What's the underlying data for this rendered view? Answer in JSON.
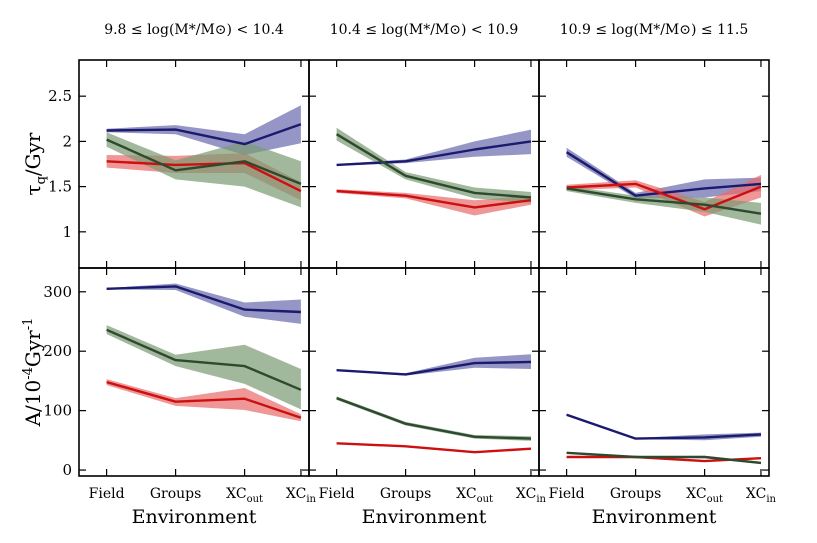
{
  "chart_data": {
    "type": "line",
    "xlabel": "Environment",
    "categories": [
      "Field",
      "Groups",
      "XC_out",
      "XC_in"
    ],
    "x_tick_labels": [
      {
        "main": "Field",
        "sub": ""
      },
      {
        "main": "Groups",
        "sub": ""
      },
      {
        "main": "XC",
        "sub": "out"
      },
      {
        "main": "XC",
        "sub": "in"
      }
    ],
    "columns": [
      {
        "title": "9.8 ≤ log(M*/M⊙) < 10.4"
      },
      {
        "title": "10.4 ≤ log(M*/M⊙) < 10.9"
      },
      {
        "title": "10.9 ≤ log(M*/M⊙) ≤ 11.5"
      }
    ],
    "rows": [
      {
        "ylabel": "τq/Gyr",
        "ylim": [
          0.6,
          2.9
        ],
        "yticks": [
          "1",
          "1.5",
          "2",
          "2.5"
        ]
      },
      {
        "ylabel": "A/10^-4 Gyr^-1",
        "ylim": [
          -10,
          340
        ],
        "yticks": [
          "0",
          "100",
          "200",
          "300"
        ]
      }
    ],
    "series_styles": [
      {
        "name": "blue",
        "line": "#1a1a6e",
        "band": "#6a6aae"
      },
      {
        "name": "red",
        "line": "#cc1010",
        "band": "#e86b6b"
      },
      {
        "name": "green",
        "line": "#2e4a2e",
        "band": "#7a9a72"
      }
    ],
    "panels": [
      {
        "row": 0,
        "col": 0,
        "series": [
          {
            "name": "blue",
            "values": [
              2.12,
              2.13,
              1.97,
              2.19
            ],
            "lower": [
              2.1,
              2.08,
              1.85,
              1.98
            ],
            "upper": [
              2.14,
              2.18,
              2.08,
              2.4
            ]
          },
          {
            "name": "red",
            "values": [
              1.78,
              1.74,
              1.76,
              1.45
            ],
            "lower": [
              1.71,
              1.65,
              1.65,
              1.35
            ],
            "upper": [
              1.85,
              1.84,
              1.87,
              1.55
            ]
          },
          {
            "name": "green",
            "values": [
              2.02,
              1.68,
              1.78,
              1.53
            ],
            "lower": [
              1.94,
              1.58,
              1.5,
              1.27
            ],
            "upper": [
              2.1,
              1.79,
              2.0,
              1.78
            ]
          }
        ]
      },
      {
        "row": 0,
        "col": 1,
        "series": [
          {
            "name": "blue",
            "values": [
              1.74,
              1.78,
              1.91,
              2.0
            ],
            "lower": [
              1.73,
              1.76,
              1.83,
              1.86
            ],
            "upper": [
              1.75,
              1.8,
              2.0,
              2.13
            ]
          },
          {
            "name": "red",
            "values": [
              1.45,
              1.4,
              1.27,
              1.35
            ],
            "lower": [
              1.43,
              1.37,
              1.18,
              1.3
            ],
            "upper": [
              1.47,
              1.43,
              1.35,
              1.4
            ]
          },
          {
            "name": "green",
            "values": [
              2.08,
              1.62,
              1.43,
              1.38
            ],
            "lower": [
              2.01,
              1.58,
              1.37,
              1.32
            ],
            "upper": [
              2.15,
              1.66,
              1.49,
              1.44
            ]
          }
        ]
      },
      {
        "row": 0,
        "col": 2,
        "series": [
          {
            "name": "blue",
            "values": [
              1.88,
              1.4,
              1.48,
              1.53
            ],
            "lower": [
              1.83,
              1.37,
              1.38,
              1.45
            ],
            "upper": [
              1.93,
              1.43,
              1.58,
              1.6
            ]
          },
          {
            "name": "red",
            "values": [
              1.49,
              1.53,
              1.25,
              1.5
            ],
            "lower": [
              1.46,
              1.49,
              1.17,
              1.38
            ],
            "upper": [
              1.52,
              1.57,
              1.33,
              1.63
            ]
          },
          {
            "name": "green",
            "values": [
              1.48,
              1.36,
              1.3,
              1.2
            ],
            "lower": [
              1.45,
              1.32,
              1.22,
              1.08
            ],
            "upper": [
              1.51,
              1.4,
              1.38,
              1.32
            ]
          }
        ]
      },
      {
        "row": 1,
        "col": 0,
        "series": [
          {
            "name": "blue",
            "values": [
              305,
              309,
              270,
              266
            ],
            "lower": [
              304,
              303,
              258,
              246
            ],
            "upper": [
              306,
              314,
              282,
              287
            ]
          },
          {
            "name": "red",
            "values": [
              148,
              115,
              120,
              88
            ],
            "lower": [
              143,
              108,
              101,
              82
            ],
            "upper": [
              153,
              121,
              138,
              94
            ]
          },
          {
            "name": "green",
            "values": [
              236,
              185,
              175,
              135
            ],
            "lower": [
              229,
              175,
              145,
              102
            ],
            "upper": [
              244,
              194,
              211,
              170
            ]
          }
        ]
      },
      {
        "row": 1,
        "col": 1,
        "series": [
          {
            "name": "blue",
            "values": [
              168,
              161,
              180,
              182
            ],
            "lower": [
              167,
              159,
              172,
              170
            ],
            "upper": [
              169,
              163,
              189,
              195
            ]
          },
          {
            "name": "red",
            "values": [
              45,
              40,
              30,
              36
            ],
            "lower": [
              44,
              39,
              29,
              35
            ],
            "upper": [
              46,
              41,
              31,
              37
            ]
          },
          {
            "name": "green",
            "values": [
              121,
              78,
              56,
              53
            ],
            "lower": [
              118,
              75,
              53,
              49
            ],
            "upper": [
              124,
              81,
              59,
              57
            ]
          }
        ]
      },
      {
        "row": 1,
        "col": 2,
        "series": [
          {
            "name": "blue",
            "values": [
              93,
              53,
              55,
              60
            ],
            "lower": [
              91,
              52,
              50,
              56
            ],
            "upper": [
              95,
              54,
              60,
              63
            ]
          },
          {
            "name": "red",
            "values": [
              22,
              22,
              15,
              20
            ],
            "lower": [
              21,
              21,
              14,
              19
            ],
            "upper": [
              23,
              23,
              16,
              21
            ]
          },
          {
            "name": "green",
            "values": [
              29,
              22,
              22,
              12
            ],
            "lower": [
              28,
              21,
              20,
              10
            ],
            "upper": [
              30,
              23,
              24,
              14
            ]
          }
        ]
      }
    ]
  }
}
